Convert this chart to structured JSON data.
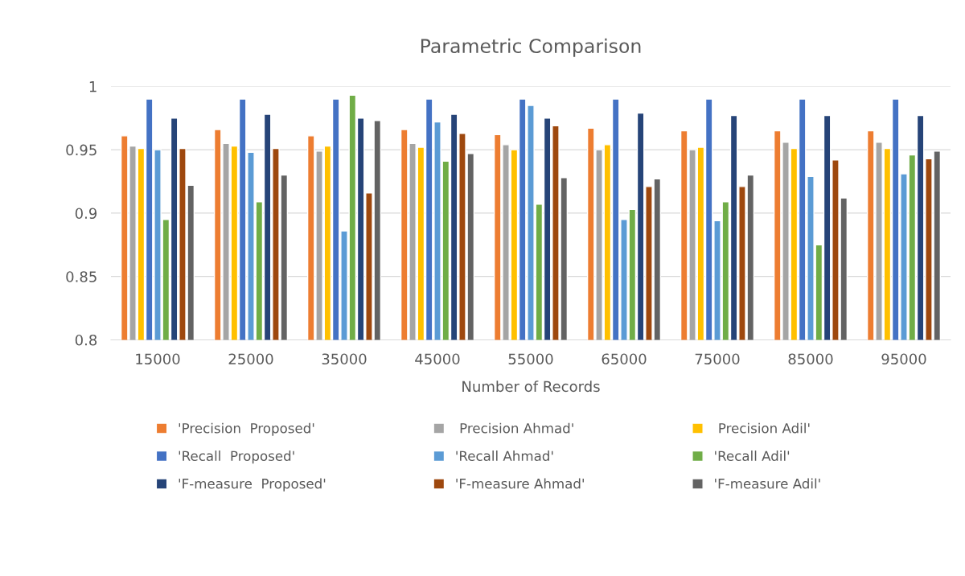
{
  "chart_data": {
    "type": "bar",
    "title": "Parametric Comparison",
    "xlabel": "Number of Records",
    "categories": [
      "15000",
      "25000",
      "35000",
      "45000",
      "55000",
      "65000",
      "75000",
      "85000",
      "95000"
    ],
    "series": [
      {
        "name": "'Precision  Proposed'",
        "color": "#ed7d31",
        "values": [
          0.961,
          0.966,
          0.961,
          0.966,
          0.962,
          0.967,
          0.965,
          0.965,
          0.965
        ]
      },
      {
        "name": " Precision Ahmad'",
        "color": "#a5a5a5",
        "values": [
          0.953,
          0.955,
          0.949,
          0.955,
          0.954,
          0.95,
          0.95,
          0.956,
          0.956
        ]
      },
      {
        "name": " Precision Adil'",
        "color": "#ffc000",
        "values": [
          0.951,
          0.953,
          0.953,
          0.952,
          0.95,
          0.954,
          0.952,
          0.951,
          0.951
        ]
      },
      {
        "name": "'Recall  Proposed'",
        "color": "#4472c4",
        "values": [
          0.99,
          0.99,
          0.99,
          0.99,
          0.99,
          0.99,
          0.99,
          0.99,
          0.99
        ]
      },
      {
        "name": "'Recall Ahmad'",
        "color": "#5b9bd5",
        "values": [
          0.95,
          0.948,
          0.886,
          0.972,
          0.985,
          0.895,
          0.894,
          0.929,
          0.931
        ]
      },
      {
        "name": "'Recall Adil'",
        "color": "#70ad47",
        "values": [
          0.895,
          0.909,
          0.993,
          0.941,
          0.907,
          0.903,
          0.909,
          0.875,
          0.946
        ]
      },
      {
        "name": "'F-measure  Proposed'",
        "color": "#264478",
        "values": [
          0.975,
          0.978,
          0.975,
          0.978,
          0.975,
          0.979,
          0.977,
          0.977,
          0.977
        ]
      },
      {
        "name": "'F-measure Ahmad'",
        "color": "#9e480e",
        "values": [
          0.951,
          0.951,
          0.916,
          0.963,
          0.969,
          0.921,
          0.921,
          0.942,
          0.943
        ]
      },
      {
        "name": "'F-measure Adil'",
        "color": "#636363",
        "values": [
          0.922,
          0.93,
          0.973,
          0.947,
          0.928,
          0.927,
          0.93,
          0.912,
          0.949
        ]
      }
    ],
    "ylim": [
      0.8,
      1
    ],
    "yticks": [
      0.8,
      0.85,
      0.9,
      0.95,
      1
    ],
    "grid": "y",
    "legend": "bottom"
  }
}
